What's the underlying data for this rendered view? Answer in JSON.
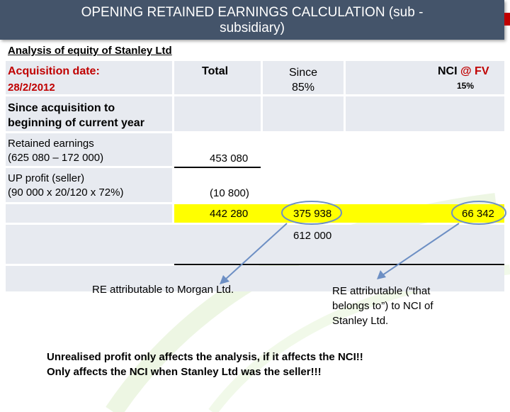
{
  "title": "OPENING RETAINED EARNINGS CALCULATION (sub - subsidiary)",
  "title_line1": "OPENING RETAINED EARNINGS CALCULATION (sub -",
  "title_line2": "subsidiary)",
  "subtitle": "Analysis of equity of Stanley Ltd",
  "table": {
    "acq_label": "Acquisition date:",
    "acq_date": "28/2/2012",
    "col_total": "Total",
    "col_since_line1": "Since",
    "col_since_line2": "85%",
    "col_nci_prefix": "NCI ",
    "col_nci_at": "@ ",
    "col_nci_fv": "FV",
    "col_nci_pct": "15%",
    "row_since_acq_line1": "Since acquisition to",
    "row_since_acq_line2": "beginning of current year",
    "row_re_line1": "Retained earnings",
    "row_re_line2": "(625 080 – 172 000)",
    "row_re_total": "453 080",
    "row_up_line1": "UP profit (seller)",
    "row_up_line2": "(90 000 x 20/120 x 72%)",
    "row_up_total": "(10 800)",
    "row_sum_total": "442 280",
    "row_sum_since": "375 938",
    "row_sum_nci": "66 342",
    "row_combined": "612 000"
  },
  "notes": {
    "left": "RE attributable to Morgan Ltd.",
    "right_line1": "RE attributable (“that",
    "right_line2": "belongs to”) to NCI of",
    "right_line3": "Stanley Ltd.",
    "bottom_line1": "Unrealised profit only affects the analysis, if it affects the NCI!!",
    "bottom_line2": "Only affects the NCI when Stanley Ltd was the seller!!!"
  },
  "colors": {
    "title_bar": "#44546a",
    "accent_red": "#c00000",
    "highlight": "#ffff00",
    "cell_fill": "#e7eaf0",
    "arrow": "#6d8fc4"
  }
}
